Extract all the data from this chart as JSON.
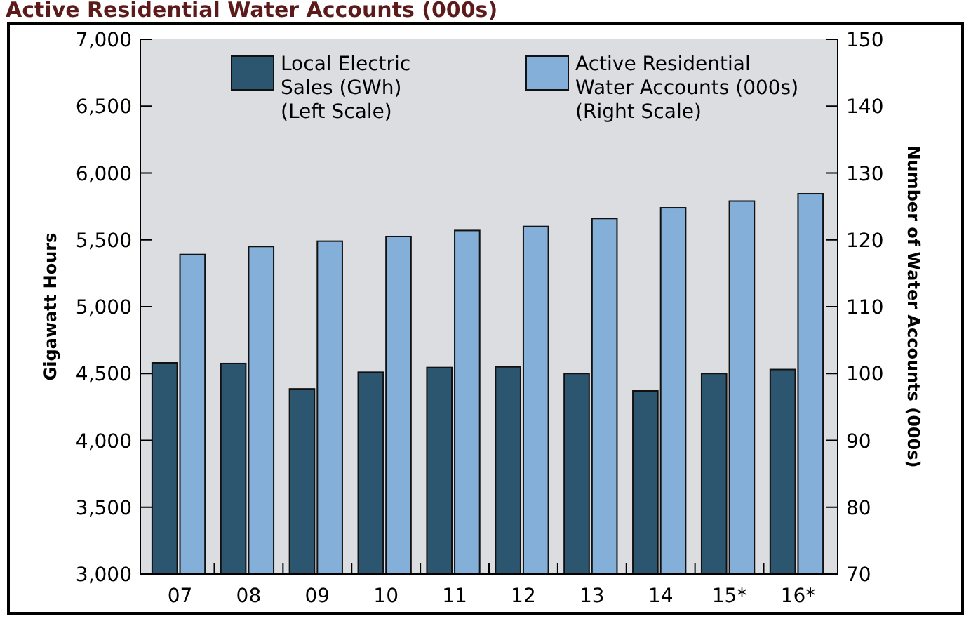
{
  "chart_data": {
    "type": "bar",
    "title": "Active Residential Water Accounts (000s)",
    "ylabel": "Gigawatt Hours",
    "y2label": "Number of Water Accounts (000s)",
    "categories": [
      "07",
      "08",
      "09",
      "10",
      "11",
      "12",
      "13",
      "14",
      "15*",
      "16*"
    ],
    "series": [
      {
        "name": "Local Electric\nSales (GWh)\n(Left Scale)",
        "color": "#2c5670",
        "values": [
          4580,
          4575,
          4385,
          4510,
          4545,
          4550,
          4500,
          4370,
          4500,
          4530
        ]
      },
      {
        "name": "Active Residential\nWater Accounts (000s)\n(Right Scale)",
        "color": "#84afd8",
        "axis": "y2",
        "values": [
          117.8,
          119.0,
          119.8,
          120.5,
          121.4,
          122.0,
          123.2,
          124.8,
          125.8,
          126.9
        ]
      }
    ],
    "ylim": [
      3000,
      7000
    ],
    "yticks": [
      {
        "value": 3000,
        "label": "3,000"
      },
      {
        "value": 3500,
        "label": "3,500"
      },
      {
        "value": 4000,
        "label": "4,000"
      },
      {
        "value": 4500,
        "label": "4,500"
      },
      {
        "value": 5000,
        "label": "5,000"
      },
      {
        "value": 5500,
        "label": "5,500"
      },
      {
        "value": 6000,
        "label": "6,000"
      },
      {
        "value": 6500,
        "label": "6,500"
      },
      {
        "value": 7000,
        "label": "7,000"
      }
    ],
    "y2lim": [
      70,
      150
    ],
    "y2ticks": [
      70,
      80,
      90,
      100,
      110,
      120,
      130,
      140,
      150
    ],
    "grid": false,
    "legend": "top"
  }
}
